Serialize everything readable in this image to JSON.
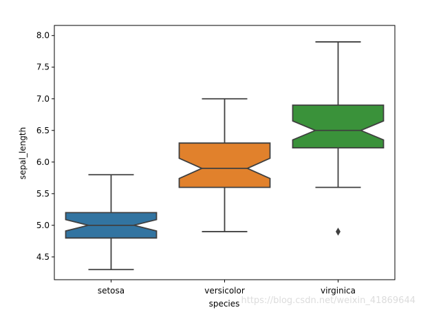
{
  "chart_data": {
    "type": "boxplot",
    "notched": true,
    "xlabel": "species",
    "ylabel": "sepal_length",
    "ylim": [
      4.14,
      8.16
    ],
    "yticks": [
      4.5,
      5.0,
      5.5,
      6.0,
      6.5,
      7.0,
      7.5,
      8.0
    ],
    "ytick_labels": [
      "4.5",
      "5.0",
      "5.5",
      "6.0",
      "6.5",
      "7.0",
      "7.5",
      "8.0"
    ],
    "grid": false,
    "categories": [
      "setosa",
      "versicolor",
      "virginica"
    ],
    "boxes": [
      {
        "category": "setosa",
        "whisker_low": 4.3,
        "q1": 4.8,
        "median": 5.0,
        "q3": 5.2,
        "whisker_high": 5.8,
        "notch_low": 4.91,
        "notch_high": 5.09,
        "outliers": [],
        "color": "#3274a1"
      },
      {
        "category": "versicolor",
        "whisker_low": 4.9,
        "q1": 5.6,
        "median": 5.9,
        "q3": 6.3,
        "whisker_high": 7.0,
        "notch_low": 5.74,
        "notch_high": 6.06,
        "outliers": [],
        "color": "#e1812c"
      },
      {
        "category": "virginica",
        "whisker_low": 5.6,
        "q1": 6.225,
        "median": 6.5,
        "q3": 6.9,
        "whisker_high": 7.9,
        "notch_low": 6.35,
        "notch_high": 6.65,
        "outliers": [
          4.9
        ],
        "color": "#3a923a"
      }
    ]
  },
  "watermark": "https://blog.csdn.net/weixin_41869644"
}
